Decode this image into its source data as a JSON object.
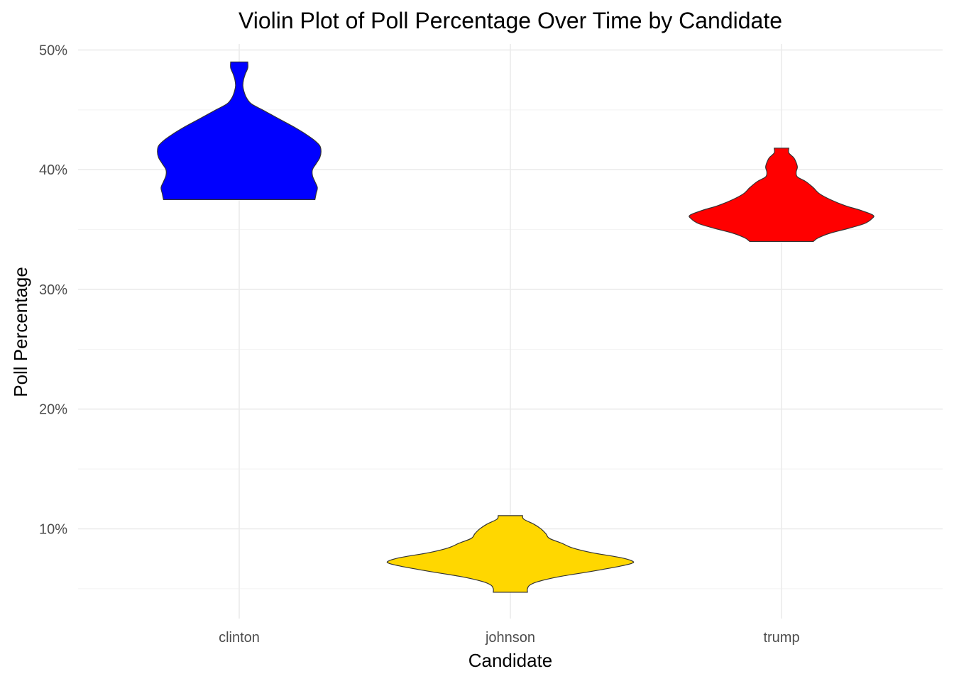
{
  "chart_data": {
    "type": "violin",
    "title": "Violin Plot of Poll Percentage Over Time by Candidate",
    "xlabel": "Candidate",
    "ylabel": "Poll Percentage",
    "categories": [
      "clinton",
      "johnson",
      "trump"
    ],
    "y_ticks": [
      10,
      20,
      30,
      40,
      50
    ],
    "y_tick_labels": [
      "10%",
      "20%",
      "30%",
      "40%",
      "50%"
    ],
    "y_minor_ticks": [
      5,
      15,
      25,
      35,
      45
    ],
    "ylim": [
      2.5,
      50.5
    ],
    "grid": true,
    "series": [
      {
        "category": "clinton",
        "color": "#0000FF",
        "min": 37.5,
        "max": 49.0,
        "profile": [
          [
            37.5,
            0.62
          ],
          [
            38.0,
            0.63
          ],
          [
            38.5,
            0.64
          ],
          [
            39.0,
            0.62
          ],
          [
            39.5,
            0.6
          ],
          [
            40.0,
            0.6
          ],
          [
            40.5,
            0.63
          ],
          [
            41.0,
            0.66
          ],
          [
            41.5,
            0.67
          ],
          [
            42.0,
            0.66
          ],
          [
            42.5,
            0.61
          ],
          [
            43.0,
            0.54
          ],
          [
            43.5,
            0.46
          ],
          [
            44.0,
            0.37
          ],
          [
            44.5,
            0.28
          ],
          [
            45.0,
            0.19
          ],
          [
            45.5,
            0.1
          ],
          [
            46.0,
            0.06
          ],
          [
            46.5,
            0.04
          ],
          [
            47.0,
            0.03
          ],
          [
            47.5,
            0.035
          ],
          [
            48.0,
            0.05
          ],
          [
            48.5,
            0.07
          ],
          [
            49.0,
            0.07
          ]
        ]
      },
      {
        "category": "johnson",
        "color": "#FFD700",
        "min": 4.7,
        "max": 11.1,
        "profile": [
          [
            4.7,
            0.14
          ],
          [
            5.0,
            0.14
          ],
          [
            5.3,
            0.16
          ],
          [
            5.6,
            0.23
          ],
          [
            6.0,
            0.4
          ],
          [
            6.4,
            0.64
          ],
          [
            6.8,
            0.86
          ],
          [
            7.1,
            0.99
          ],
          [
            7.3,
            1.0
          ],
          [
            7.6,
            0.9
          ],
          [
            8.0,
            0.67
          ],
          [
            8.4,
            0.51
          ],
          [
            8.8,
            0.42
          ],
          [
            9.2,
            0.32
          ],
          [
            9.6,
            0.29
          ],
          [
            10.0,
            0.25
          ],
          [
            10.4,
            0.19
          ],
          [
            10.8,
            0.11
          ],
          [
            11.1,
            0.1
          ]
        ]
      },
      {
        "category": "trump",
        "color": "#FF0000",
        "min": 34.0,
        "max": 41.8,
        "profile": [
          [
            34.0,
            0.26
          ],
          [
            34.3,
            0.3
          ],
          [
            34.7,
            0.4
          ],
          [
            35.1,
            0.55
          ],
          [
            35.5,
            0.68
          ],
          [
            35.9,
            0.74
          ],
          [
            36.2,
            0.75
          ],
          [
            36.6,
            0.65
          ],
          [
            37.0,
            0.52
          ],
          [
            37.5,
            0.4
          ],
          [
            38.0,
            0.31
          ],
          [
            38.5,
            0.26
          ],
          [
            39.0,
            0.2
          ],
          [
            39.4,
            0.13
          ],
          [
            39.8,
            0.12
          ],
          [
            40.2,
            0.13
          ],
          [
            40.6,
            0.12
          ],
          [
            41.0,
            0.1
          ],
          [
            41.4,
            0.06
          ],
          [
            41.8,
            0.06
          ]
        ]
      }
    ]
  }
}
